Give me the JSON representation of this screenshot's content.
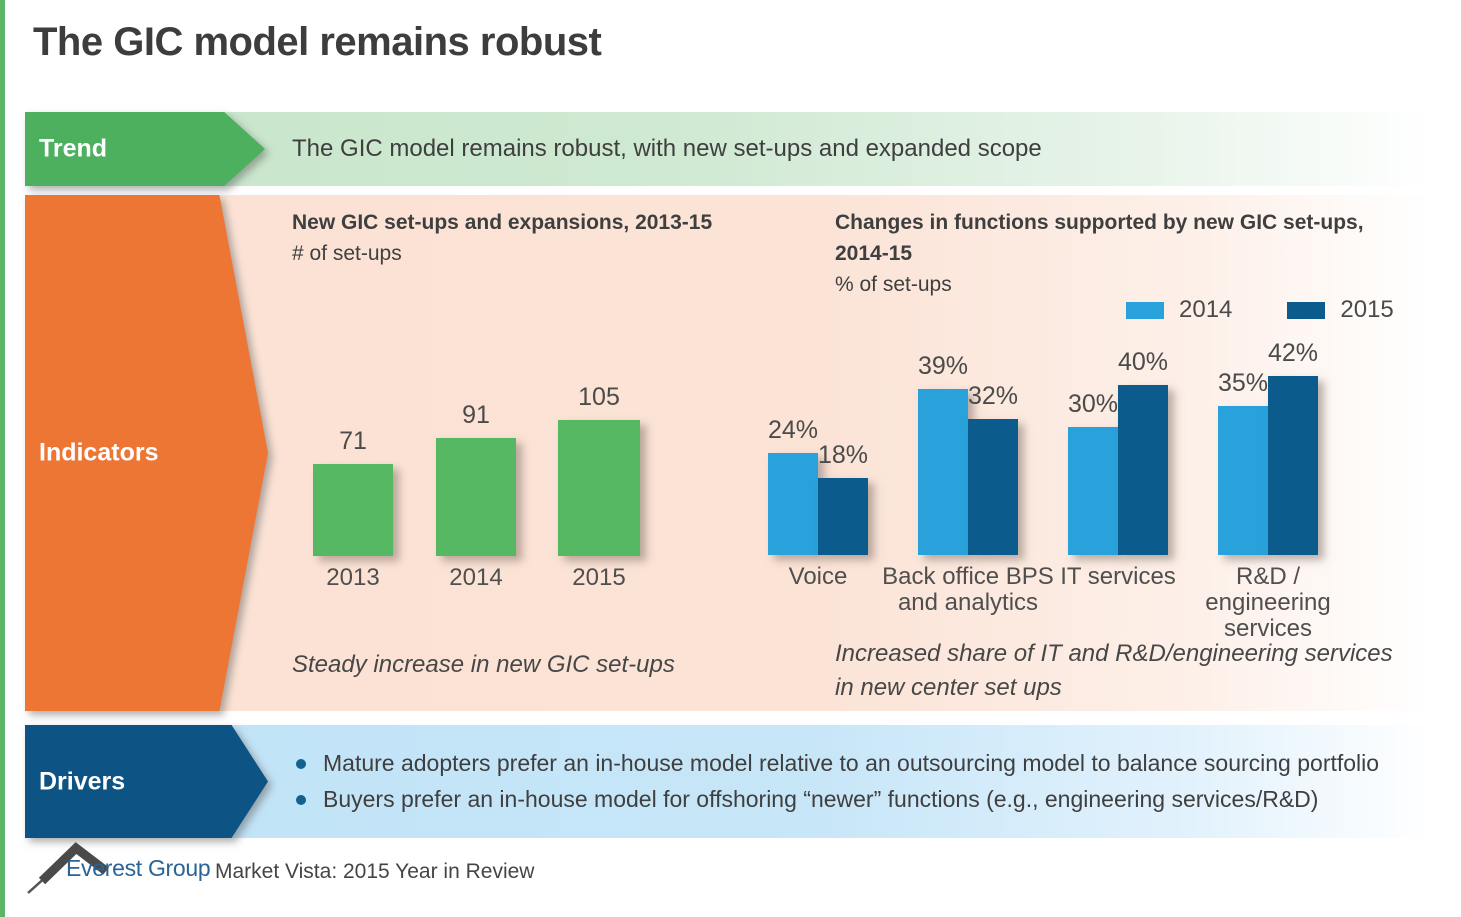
{
  "slide": {
    "title": "The GIC model remains robust"
  },
  "trend": {
    "label": "Trend",
    "text": "The GIC model remains robust, with new set-ups and expanded scope"
  },
  "indicators": {
    "label": "Indicators"
  },
  "drivers": {
    "label": "Drivers",
    "bullets": [
      "Mature adopters prefer an in-house model relative to an outsourcing model to balance sourcing portfolio",
      "Buyers prefer an in-house model for offshoring “newer” functions (e.g., engineering services/R&D)"
    ]
  },
  "footer": {
    "brand": "Everest Group",
    "caption": "Market Vista: 2015 Year in Review"
  },
  "colors": {
    "accent_green": "#4db05f",
    "accent_orange": "#ee7634",
    "accent_dark_blue": "#0d5384",
    "bar_green": "#57b863",
    "bar_light_blue": "#29a2db",
    "bar_dark_blue": "#0b5c8d",
    "band_green": "#c8e6cb",
    "band_peach": "#fbe2d4",
    "band_blue": "#c0e3f7",
    "text_dark": "#3f3f3f",
    "brand_blue": "#2a6496",
    "edge_green": "#5cb565"
  },
  "chart_data": [
    {
      "type": "bar",
      "title": "New GIC set-ups and expansions, 2013-15",
      "ylabel": "# of set-ups",
      "categories": [
        "2013",
        "2014",
        "2015"
      ],
      "values": [
        71,
        91,
        105
      ],
      "data_labels": [
        "71",
        "91",
        "105"
      ],
      "bar_color": "#57b863",
      "annotation": "Steady increase in new GIC set-ups",
      "ylim": [
        0,
        120
      ],
      "grid": false,
      "axes_hidden": true,
      "legend_position": "none"
    },
    {
      "type": "bar",
      "title": "Changes in functions supported by new GIC set-ups, 2014-15",
      "title_lines": [
        "Changes in functions supported by new GIC set-ups,",
        "2014-15"
      ],
      "ylabel": "% of set-ups",
      "categories": [
        "Voice",
        "Back office BPS and analytics",
        "IT services",
        "R&D / engineering services"
      ],
      "categories_lines": [
        [
          "Voice"
        ],
        [
          "Back office BPS",
          "and analytics"
        ],
        [
          "IT services"
        ],
        [
          "R&D /",
          "engineering",
          "services"
        ]
      ],
      "series": [
        {
          "name": "2014",
          "color": "#29a2db",
          "values": [
            24,
            39,
            30,
            35
          ]
        },
        {
          "name": "2015",
          "color": "#0b5c8d",
          "values": [
            18,
            32,
            40,
            42
          ]
        }
      ],
      "value_suffix": "%",
      "annotation": "Increased share of IT and R&D/engineering services in new center set ups",
      "annotation_lines": [
        "Increased share of IT and R&D/engineering services",
        "in new center set ups"
      ],
      "ylim": [
        0,
        45
      ],
      "grid": false,
      "axes_hidden": true,
      "legend_position": "top-right"
    }
  ]
}
